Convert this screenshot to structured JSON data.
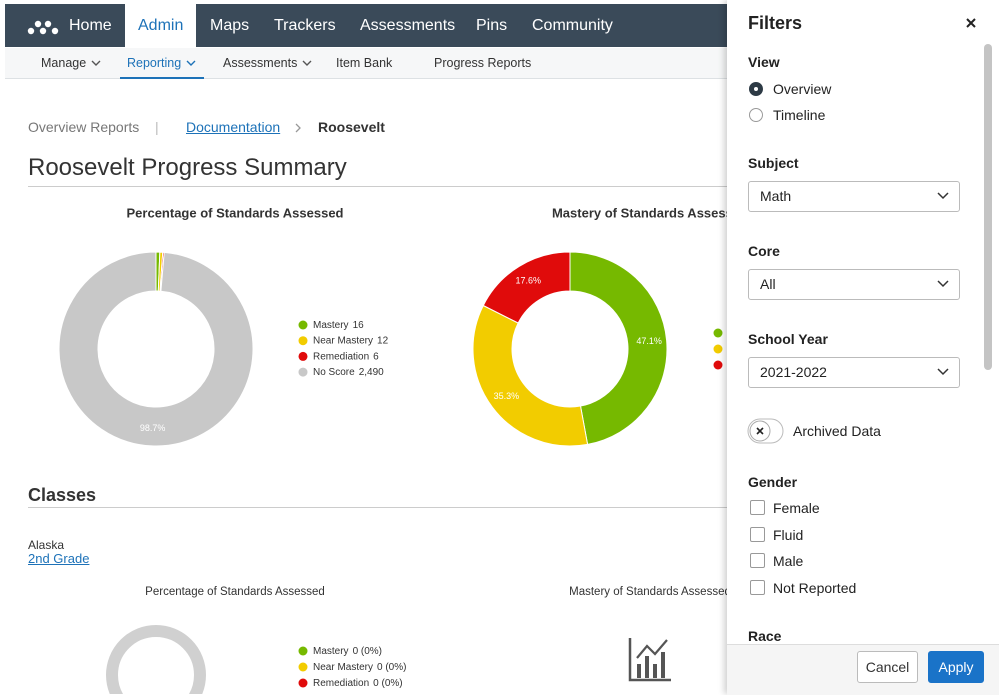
{
  "nav": {
    "items": [
      "Home",
      "Admin",
      "Maps",
      "Trackers",
      "Assessments",
      "Pins",
      "Community"
    ]
  },
  "subnav": {
    "items": [
      "Manage",
      "Reporting",
      "Assessments",
      "Item Bank",
      "Progress Reports"
    ]
  },
  "breadcrumb": {
    "items": [
      "Overview Reports",
      "Documentation",
      "Roosevelt"
    ]
  },
  "page_title": "Roosevelt Progress Summary",
  "classes": {
    "heading": "Classes",
    "school": "Alaska",
    "class_link": "2nd Grade"
  },
  "chart_data": [
    {
      "type": "pie",
      "donut": true,
      "title": "Percentage of Standards Assessed",
      "categories": [
        "Mastery",
        "Near Mastery",
        "Remediation",
        "No Score"
      ],
      "values": [
        16,
        12,
        6,
        2490
      ],
      "value_labels": [
        "16",
        "12",
        "6",
        "2,490"
      ],
      "slice_labels": [
        null,
        null,
        null,
        "98.7%"
      ],
      "colors": [
        "#76b900",
        "#f2cc00",
        "#e00b0b",
        "#c8c8c8"
      ]
    },
    {
      "type": "pie",
      "donut": true,
      "title": "Mastery of Standards Assessed",
      "values": [
        47.1,
        35.3,
        17.6
      ],
      "value_labels": [
        "47.1%",
        "35.3%",
        "17.6%"
      ],
      "colors": [
        "#76b900",
        "#f2cc00",
        "#e00b0b"
      ]
    },
    {
      "type": "pie",
      "donut": true,
      "title": "Percentage of Standards Assessed",
      "categories": [
        "Mastery",
        "Near Mastery",
        "Remediation"
      ],
      "values": [
        0,
        0,
        0
      ],
      "value_labels": [
        "0 (0%)",
        "0 (0%)",
        "0 (0%)"
      ],
      "colors": [
        "#76b900",
        "#f2cc00",
        "#e00b0b"
      ]
    },
    {
      "type": "empty",
      "title": "Mastery of Standards Assessed"
    }
  ],
  "filters": {
    "title": "Filters",
    "view": {
      "label": "View",
      "options": [
        "Overview",
        "Timeline"
      ]
    },
    "subject": {
      "label": "Subject",
      "value": "Math"
    },
    "core": {
      "label": "Core",
      "value": "All"
    },
    "school_year": {
      "label": "School Year",
      "value": "2021-2022"
    },
    "archived": {
      "label": "Archived Data"
    },
    "gender": {
      "label": "Gender",
      "options": [
        "Female",
        "Fluid",
        "Male",
        "Not Reported"
      ]
    },
    "race": {
      "label": "Race"
    },
    "buttons": [
      "Cancel",
      "Apply"
    ]
  }
}
